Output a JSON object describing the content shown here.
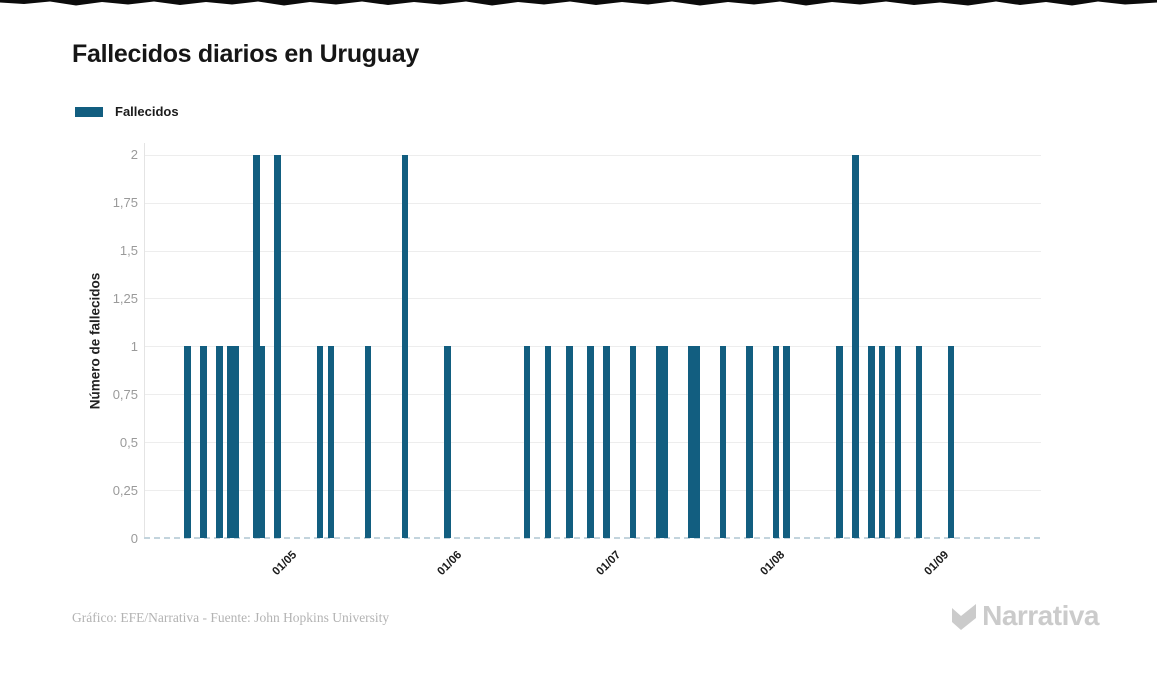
{
  "title": "Fallecidos diarios en Uruguay",
  "legend": {
    "label": "Fallecidos"
  },
  "colors": {
    "bar": "#125e80",
    "grid": "#ededed",
    "tick_text": "#9a9a9a",
    "text": "#1b1b1b",
    "logo": "#cbcbcb"
  },
  "footer": {
    "credits": "Gráfico: EFE/Narrativa - Fuente: John Hopkins University",
    "logo_text": "Narrativa"
  },
  "chart_data": {
    "type": "bar",
    "title": "Fallecidos diarios en Uruguay",
    "xlabel": "",
    "ylabel": "Número de fallecidos",
    "ylim": [
      0,
      2
    ],
    "grid": true,
    "legend_position": "top-left",
    "yticks": [
      {
        "value": 0,
        "label": "0"
      },
      {
        "value": 0.25,
        "label": "0,25"
      },
      {
        "value": 0.5,
        "label": "0,5"
      },
      {
        "value": 0.75,
        "label": "0,75"
      },
      {
        "value": 1,
        "label": "1"
      },
      {
        "value": 1.25,
        "label": "1,25"
      },
      {
        "value": 1.5,
        "label": "1,5"
      },
      {
        "value": 1.75,
        "label": "1,75"
      },
      {
        "value": 2,
        "label": "2"
      }
    ],
    "xticks": [
      {
        "date": "2020-05-01",
        "label": "01/05"
      },
      {
        "date": "2020-06-01",
        "label": "01/06"
      },
      {
        "date": "2020-07-01",
        "label": "01/07"
      },
      {
        "date": "2020-08-01",
        "label": "01/08"
      },
      {
        "date": "2020-09-01",
        "label": "01/09"
      }
    ],
    "series": [
      {
        "name": "Fallecidos",
        "points": [
          {
            "date": "2020-04-13",
            "value": 1
          },
          {
            "date": "2020-04-16",
            "value": 1
          },
          {
            "date": "2020-04-19",
            "value": 1
          },
          {
            "date": "2020-04-21",
            "value": 1
          },
          {
            "date": "2020-04-22",
            "value": 1
          },
          {
            "date": "2020-04-26",
            "value": 2
          },
          {
            "date": "2020-04-27",
            "value": 1
          },
          {
            "date": "2020-04-30",
            "value": 2
          },
          {
            "date": "2020-05-08",
            "value": 1
          },
          {
            "date": "2020-05-10",
            "value": 1
          },
          {
            "date": "2020-05-17",
            "value": 1
          },
          {
            "date": "2020-05-24",
            "value": 2
          },
          {
            "date": "2020-06-01",
            "value": 1
          },
          {
            "date": "2020-06-16",
            "value": 1
          },
          {
            "date": "2020-06-20",
            "value": 1
          },
          {
            "date": "2020-06-24",
            "value": 1
          },
          {
            "date": "2020-06-28",
            "value": 1
          },
          {
            "date": "2020-07-01",
            "value": 1
          },
          {
            "date": "2020-07-06",
            "value": 1
          },
          {
            "date": "2020-07-11",
            "value": 1
          },
          {
            "date": "2020-07-12",
            "value": 1
          },
          {
            "date": "2020-07-17",
            "value": 1
          },
          {
            "date": "2020-07-18",
            "value": 1
          },
          {
            "date": "2020-07-23",
            "value": 1
          },
          {
            "date": "2020-07-28",
            "value": 1
          },
          {
            "date": "2020-08-02",
            "value": 1
          },
          {
            "date": "2020-08-04",
            "value": 1
          },
          {
            "date": "2020-08-14",
            "value": 1
          },
          {
            "date": "2020-08-17",
            "value": 2
          },
          {
            "date": "2020-08-20",
            "value": 1
          },
          {
            "date": "2020-08-22",
            "value": 1
          },
          {
            "date": "2020-08-25",
            "value": 1
          },
          {
            "date": "2020-08-29",
            "value": 1
          },
          {
            "date": "2020-09-04",
            "value": 1
          }
        ]
      }
    ]
  }
}
